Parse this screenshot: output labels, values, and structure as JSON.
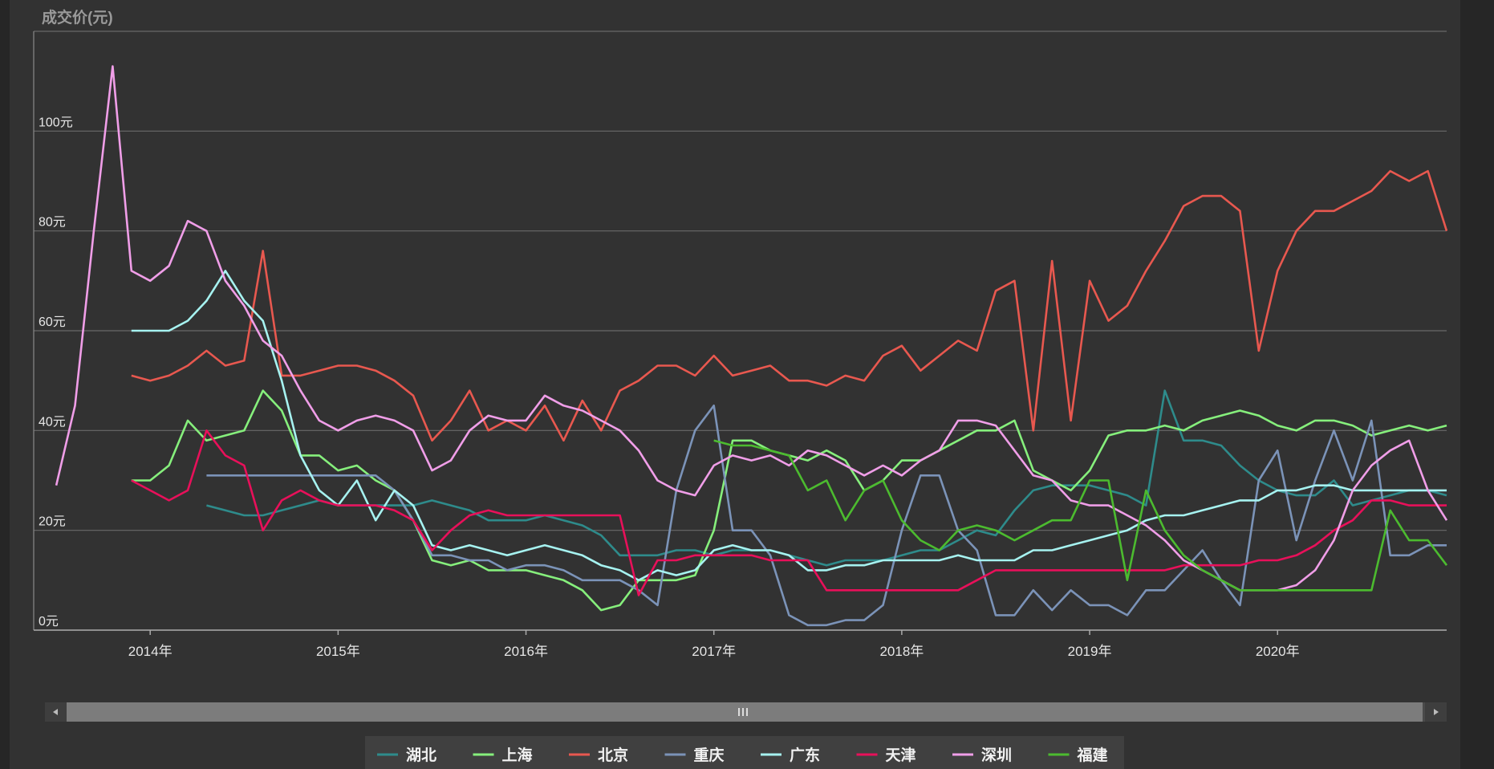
{
  "chart_data": {
    "type": "line",
    "y_axis_label": "成交价(元)",
    "x": [
      2013.5,
      2013.6,
      2013.7,
      2013.8,
      2013.9,
      2014.0,
      2014.1,
      2014.2,
      2014.3,
      2014.4,
      2014.5,
      2014.6,
      2014.7,
      2014.8,
      2014.9,
      2015.0,
      2015.1,
      2015.2,
      2015.3,
      2015.4,
      2015.5,
      2015.6,
      2015.7,
      2015.8,
      2015.9,
      2016.0,
      2016.1,
      2016.2,
      2016.3,
      2016.4,
      2016.5,
      2016.6,
      2016.7,
      2016.8,
      2016.9,
      2017.0,
      2017.1,
      2017.2,
      2017.3,
      2017.4,
      2017.5,
      2017.6,
      2017.7,
      2017.8,
      2017.9,
      2018.0,
      2018.1,
      2018.2,
      2018.3,
      2018.4,
      2018.5,
      2018.6,
      2018.7,
      2018.8,
      2018.9,
      2019.0,
      2019.1,
      2019.2,
      2019.3,
      2019.4,
      2019.5,
      2019.6,
      2019.7,
      2019.8,
      2019.9,
      2020.0,
      2020.1,
      2020.2,
      2020.3,
      2020.4,
      2020.5,
      2020.6,
      2020.7,
      2020.8,
      2020.9
    ],
    "xlim": [
      2013.38,
      2020.9
    ],
    "xticks": [
      {
        "value": 2014,
        "label": "2014年"
      },
      {
        "value": 2015,
        "label": "2015年"
      },
      {
        "value": 2016,
        "label": "2016年"
      },
      {
        "value": 2017,
        "label": "2017年"
      },
      {
        "value": 2018,
        "label": "2018年"
      },
      {
        "value": 2019,
        "label": "2019年"
      },
      {
        "value": 2020,
        "label": "2020年"
      }
    ],
    "ylim": [
      0,
      120
    ],
    "yticks": [
      {
        "value": 0,
        "label": "0元"
      },
      {
        "value": 20,
        "label": "20元"
      },
      {
        "value": 40,
        "label": "40元"
      },
      {
        "value": 60,
        "label": "60元"
      },
      {
        "value": 80,
        "label": "80元"
      },
      {
        "value": 100,
        "label": "100元"
      }
    ],
    "grid": true,
    "legend": "bottom",
    "series": [
      {
        "name": "湖北",
        "color": "#2e8b8b",
        "values": [
          null,
          null,
          null,
          null,
          null,
          null,
          null,
          null,
          25,
          24,
          23,
          23,
          24,
          25,
          26,
          25,
          25,
          25,
          25,
          25,
          26,
          25,
          24,
          22,
          22,
          22,
          23,
          22,
          21,
          19,
          15,
          15,
          15,
          16,
          16,
          15,
          16,
          16,
          16,
          15,
          14,
          13,
          14,
          14,
          14,
          15,
          16,
          16,
          18,
          20,
          19,
          24,
          28,
          29,
          29,
          29,
          28,
          27,
          25,
          48,
          38,
          38,
          37,
          33,
          30,
          28,
          27,
          27,
          30,
          25,
          26,
          27,
          28,
          28,
          27
        ]
      },
      {
        "name": "上海",
        "color": "#86ef7c",
        "values": [
          null,
          null,
          null,
          null,
          30,
          30,
          33,
          42,
          38,
          39,
          40,
          48,
          44,
          35,
          35,
          32,
          33,
          30,
          28,
          22,
          14,
          13,
          14,
          12,
          12,
          12,
          11,
          10,
          8,
          4,
          5,
          10,
          10,
          10,
          11,
          20,
          38,
          38,
          36,
          35,
          34,
          36,
          34,
          28,
          30,
          34,
          34,
          36,
          38,
          40,
          40,
          42,
          32,
          30,
          28,
          32,
          39,
          40,
          40,
          41,
          40,
          42,
          43,
          44,
          43,
          41,
          40,
          42,
          42,
          41,
          39,
          40,
          41,
          40,
          41
        ]
      },
      {
        "name": "北京",
        "color": "#e8584f",
        "values": [
          null,
          null,
          null,
          null,
          51,
          50,
          51,
          53,
          56,
          53,
          54,
          76,
          51,
          51,
          52,
          53,
          53,
          52,
          50,
          47,
          38,
          42,
          48,
          40,
          42,
          40,
          45,
          38,
          46,
          40,
          48,
          50,
          53,
          53,
          51,
          55,
          51,
          52,
          53,
          50,
          50,
          49,
          51,
          50,
          55,
          57,
          52,
          55,
          58,
          56,
          68,
          70,
          40,
          74,
          42,
          70,
          62,
          65,
          72,
          78,
          85,
          87,
          87,
          84,
          56,
          72,
          80,
          84,
          84,
          86,
          88,
          92,
          90,
          92,
          80
        ]
      },
      {
        "name": "重庆",
        "color": "#7b93b8",
        "values": [
          null,
          null,
          null,
          null,
          null,
          null,
          null,
          null,
          31,
          31,
          31,
          31,
          31,
          31,
          31,
          31,
          31,
          31,
          28,
          22,
          15,
          15,
          14,
          14,
          12,
          13,
          13,
          12,
          10,
          10,
          10,
          8,
          5,
          28,
          40,
          45,
          20,
          20,
          15,
          3,
          1,
          1,
          2,
          2,
          5,
          20,
          31,
          31,
          20,
          16,
          3,
          3,
          8,
          4,
          8,
          5,
          5,
          3,
          8,
          8,
          12,
          16,
          10,
          5,
          30,
          36,
          18,
          30,
          40,
          30,
          42,
          15,
          15,
          17,
          17
        ]
      },
      {
        "name": "广东",
        "color": "#a6f2f0",
        "values": [
          null,
          null,
          null,
          null,
          60,
          60,
          60,
          62,
          66,
          72,
          66,
          62,
          50,
          35,
          28,
          25,
          30,
          22,
          28,
          25,
          17,
          16,
          17,
          16,
          15,
          16,
          17,
          16,
          15,
          13,
          12,
          10,
          12,
          11,
          12,
          16,
          17,
          16,
          16,
          15,
          12,
          12,
          13,
          13,
          14,
          14,
          14,
          14,
          15,
          14,
          14,
          14,
          16,
          16,
          17,
          18,
          19,
          20,
          22,
          23,
          23,
          24,
          25,
          26,
          26,
          28,
          28,
          29,
          29,
          28,
          28,
          28,
          28,
          28,
          28
        ]
      },
      {
        "name": "天津",
        "color": "#e8105a",
        "values": [
          null,
          null,
          null,
          null,
          30,
          28,
          26,
          28,
          40,
          35,
          33,
          20,
          26,
          28,
          26,
          25,
          25,
          25,
          24,
          22,
          16,
          20,
          23,
          24,
          23,
          23,
          23,
          23,
          23,
          23,
          23,
          7,
          14,
          14,
          15,
          15,
          15,
          15,
          14,
          14,
          14,
          8,
          8,
          8,
          8,
          8,
          8,
          8,
          8,
          10,
          12,
          12,
          12,
          12,
          12,
          12,
          12,
          12,
          12,
          12,
          13,
          13,
          13,
          13,
          14,
          14,
          15,
          17,
          20,
          22,
          26,
          26,
          25,
          25,
          25
        ]
      },
      {
        "name": "深圳",
        "color": "#f09ee8",
        "values": [
          29,
          45,
          80,
          113,
          72,
          70,
          73,
          82,
          80,
          70,
          65,
          58,
          55,
          48,
          42,
          40,
          42,
          43,
          42,
          40,
          32,
          34,
          40,
          43,
          42,
          42,
          47,
          45,
          44,
          42,
          40,
          36,
          30,
          28,
          27,
          33,
          35,
          34,
          35,
          33,
          36,
          35,
          33,
          31,
          33,
          31,
          34,
          36,
          42,
          42,
          41,
          36,
          31,
          30,
          26,
          25,
          25,
          23,
          21,
          18,
          14,
          12,
          10,
          8,
          8,
          8,
          9,
          12,
          18,
          28,
          33,
          36,
          38,
          28,
          22
        ]
      },
      {
        "name": "福建",
        "color": "#4cbb2f",
        "values": [
          null,
          null,
          null,
          null,
          null,
          null,
          null,
          null,
          null,
          null,
          null,
          null,
          null,
          null,
          null,
          null,
          null,
          null,
          null,
          null,
          null,
          null,
          null,
          null,
          null,
          null,
          null,
          null,
          null,
          null,
          null,
          null,
          null,
          null,
          null,
          38,
          37,
          37,
          36,
          35,
          28,
          30,
          22,
          28,
          30,
          22,
          18,
          16,
          20,
          21,
          20,
          18,
          20,
          22,
          22,
          30,
          30,
          10,
          28,
          20,
          15,
          12,
          10,
          8,
          8,
          8,
          8,
          8,
          8,
          8,
          8,
          24,
          18,
          18,
          13
        ]
      }
    ]
  }
}
